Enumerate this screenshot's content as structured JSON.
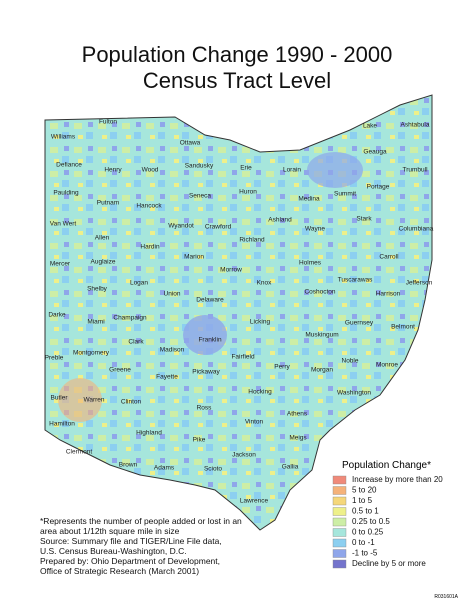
{
  "header": {
    "title_line1": "Population Change 1990 - 2000",
    "title_line2": "Census Tract Level"
  },
  "counties": [
    "Williams",
    "Fulton",
    "Ottawa",
    "Defiance",
    "Henry",
    "Wood",
    "Sandusky",
    "Erie",
    "Lorain",
    "Lake",
    "Ashtabula",
    "Geauga",
    "Trumbull",
    "Paulding",
    "Putnam",
    "Hancock",
    "Seneca",
    "Huron",
    "Medina",
    "Summit",
    "Portage",
    "Van Wert",
    "Allen",
    "Hardin",
    "Wyandot",
    "Crawford",
    "Ashland",
    "Wayne",
    "Stark",
    "Columbiana",
    "Richland",
    "Mercer",
    "Auglaize",
    "Marion",
    "Morrow",
    "Holmes",
    "Carroll",
    "Tuscarawas",
    "Jefferson",
    "Shelby",
    "Logan",
    "Union",
    "Delaware",
    "Knox",
    "Coshocton",
    "Harrison",
    "Darke",
    "Champaign",
    "Miami",
    "Licking",
    "Guernsey",
    "Belmont",
    "Clark",
    "Madison",
    "Franklin",
    "Muskingum",
    "Montgomery",
    "Preble",
    "Greene",
    "Fayette",
    "Fairfield",
    "Perry",
    "Noble",
    "Monroe",
    "Morgan",
    "Pickaway",
    "Butler",
    "Warren",
    "Clinton",
    "Ross",
    "Hocking",
    "Athens",
    "Washington",
    "Hamilton",
    "Highland",
    "Vinton",
    "Meigs",
    "Clermont",
    "Pike",
    "Jackson",
    "Gallia",
    "Brown",
    "Adams",
    "Scioto",
    "Lawrence"
  ],
  "legend": {
    "title": "Population Change*",
    "items": [
      {
        "label": "Increase by more than 20",
        "color": "#f08a7a"
      },
      {
        "label": "5 to 20",
        "color": "#f5b27a"
      },
      {
        "label": "1 to 5",
        "color": "#f5d77a"
      },
      {
        "label": "0.5 to 1",
        "color": "#eef08a"
      },
      {
        "label": "0.25 to 0.5",
        "color": "#cdeea6"
      },
      {
        "label": "0 to 0.25",
        "color": "#a6e6dc"
      },
      {
        "label": "0 to -1",
        "color": "#8ccff0"
      },
      {
        "label": "-1 to -5",
        "color": "#8fa6ea"
      },
      {
        "label": "Decline by 5 or more",
        "color": "#7474cc"
      }
    ]
  },
  "footnote": [
    "*Represents the number of people added or lost in an",
    "area about 1/12th square mile in size",
    "Source:  Summary file and TIGER/Line File data,",
    "U.S. Census Bureau-Washington, D.C.",
    "Prepared by:  Ohio Department of Development,",
    "Office of Strategic Research (March 2001)"
  ],
  "code": "R031601A"
}
